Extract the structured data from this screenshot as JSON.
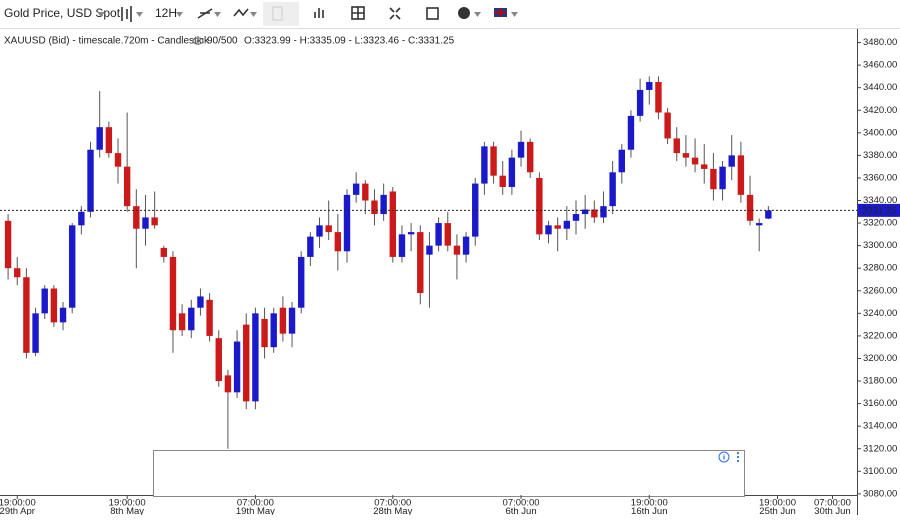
{
  "toolbar": {
    "instrument": "Gold Price, USD Spot",
    "interval": "12H"
  },
  "chart_data": {
    "type": "candlestick",
    "legend_title": "XAUUSD (Bid) - timescale.720m - Candlestick",
    "count": "90/500",
    "ohlc_summary": "O:3323.99 - H:3335.09 - L:3323.46 - C:3331.25",
    "categories": [
      null,
      {
        "time": "19:00:00",
        "date": "29th Apr"
      },
      null,
      null,
      null,
      null,
      null,
      null,
      null,
      null,
      null,
      null,
      null,
      {
        "time": "19:00:00",
        "date": "8th May"
      },
      null,
      null,
      null,
      null,
      null,
      null,
      null,
      null,
      null,
      null,
      null,
      null,
      null,
      {
        "time": "07:00:00",
        "date": "19th May"
      },
      null,
      null,
      null,
      null,
      null,
      null,
      null,
      null,
      null,
      null,
      null,
      null,
      null,
      null,
      {
        "time": "07:00:00",
        "date": "28th May"
      },
      null,
      null,
      null,
      null,
      null,
      null,
      null,
      null,
      null,
      null,
      null,
      null,
      null,
      {
        "time": "07:00:00",
        "date": "6th Jun"
      },
      null,
      null,
      null,
      null,
      null,
      null,
      null,
      null,
      null,
      null,
      null,
      null,
      null,
      {
        "time": "19:00:00",
        "date": "16th Jun"
      },
      null,
      null,
      null,
      null,
      null,
      null,
      null,
      null,
      null,
      null,
      null,
      null,
      null,
      {
        "time": "19:00:00",
        "date": "25th Jun"
      },
      null,
      null,
      null,
      null,
      null,
      {
        "time": "07:00:00",
        "date": "30th Jun"
      }
    ],
    "open": [
      3322,
      3280,
      3272,
      3205,
      3240,
      3262,
      3232,
      3245,
      3318,
      3330,
      3385,
      3405,
      3382,
      3370,
      3335,
      3315,
      3325,
      3298,
      3290,
      3240,
      3225,
      3245,
      3252,
      3218,
      3185,
      3170,
      3230,
      3162,
      3235,
      3210,
      3245,
      3222,
      3245,
      3290,
      3308,
      3318,
      3312,
      3295,
      3345,
      3355,
      3340,
      3328,
      3348,
      3290,
      3310,
      3312,
      3292,
      3300,
      3320,
      3300,
      3292,
      3308,
      3355,
      3388,
      3362,
      3352,
      3378,
      3392,
      3360,
      3310,
      3318,
      3315,
      3322,
      3328,
      3332,
      3325,
      3335,
      3365,
      3385,
      3415,
      3438,
      3445,
      3418,
      3395,
      3382,
      3378,
      3372,
      3368,
      3350,
      3370,
      3380,
      3345,
      3318,
      3323.99,
      null,
      null,
      null,
      null,
      null,
      null,
      null
    ],
    "high": [
      3328,
      3290,
      3280,
      3245,
      3265,
      3265,
      3250,
      3320,
      3335,
      3392,
      3437,
      3410,
      3395,
      3418,
      3350,
      3345,
      3348,
      3300,
      3295,
      3248,
      3252,
      3262,
      3258,
      3225,
      3190,
      3225,
      3240,
      3245,
      3245,
      3245,
      3255,
      3250,
      3295,
      3312,
      3325,
      3340,
      3328,
      3350,
      3365,
      3358,
      3350,
      3355,
      3352,
      3318,
      3320,
      3318,
      3312,
      3325,
      3330,
      3310,
      3312,
      3360,
      3392,
      3392,
      3375,
      3385,
      3402,
      3395,
      3365,
      3322,
      3325,
      3335,
      3340,
      3345,
      3340,
      3348,
      3375,
      3390,
      3420,
      3448,
      3450,
      3450,
      3422,
      3405,
      3398,
      3395,
      3390,
      3382,
      3375,
      3398,
      3392,
      3362,
      3324,
      3335.09,
      null,
      null,
      null,
      null,
      null,
      null,
      null
    ],
    "low": [
      3270,
      3265,
      3200,
      3202,
      3235,
      3228,
      3225,
      3240,
      3310,
      3325,
      3378,
      3378,
      3355,
      3330,
      3280,
      3300,
      3315,
      3285,
      3205,
      3220,
      3218,
      3238,
      3215,
      3175,
      3120,
      3165,
      3155,
      3155,
      3200,
      3205,
      3215,
      3210,
      3240,
      3282,
      3298,
      3305,
      3278,
      3285,
      3338,
      3328,
      3318,
      3322,
      3285,
      3285,
      3295,
      3248,
      3245,
      3295,
      3295,
      3270,
      3285,
      3300,
      3345,
      3355,
      3345,
      3345,
      3370,
      3360,
      3305,
      3302,
      3295,
      3305,
      3310,
      3315,
      3320,
      3320,
      3328,
      3355,
      3378,
      3410,
      3425,
      3412,
      3390,
      3375,
      3370,
      3365,
      3355,
      3340,
      3340,
      3358,
      3338,
      3318,
      3295,
      3323.46,
      null,
      null,
      null,
      null,
      null,
      null,
      null
    ],
    "close": [
      3280,
      3272,
      3205,
      3240,
      3262,
      3232,
      3245,
      3318,
      3330,
      3385,
      3405,
      3382,
      3370,
      3335,
      3315,
      3325,
      3318,
      3290,
      3225,
      3225,
      3245,
      3255,
      3220,
      3180,
      3170,
      3215,
      3162,
      3240,
      3210,
      3240,
      3222,
      3245,
      3290,
      3308,
      3318,
      3312,
      3295,
      3345,
      3355,
      3340,
      3328,
      3345,
      3290,
      3310,
      3312,
      3258,
      3300,
      3320,
      3300,
      3292,
      3308,
      3355,
      3388,
      3362,
      3352,
      3378,
      3392,
      3365,
      3310,
      3318,
      3315,
      3322,
      3328,
      3332,
      3325,
      3335,
      3365,
      3385,
      3415,
      3438,
      3445,
      3418,
      3395,
      3382,
      3378,
      3372,
      3368,
      3350,
      3370,
      3380,
      3345,
      3322,
      3320,
      3331.25,
      null,
      null,
      null,
      null,
      null,
      null,
      null
    ],
    "up_color": "#1a1acc",
    "down_color": "#cc1a1a",
    "ylim": [
      3079,
      3492
    ],
    "yticks": [
      {
        "value": 3080,
        "label": "3080.00"
      },
      {
        "value": 3100,
        "label": "3100.00"
      },
      {
        "value": 3120,
        "label": "3120.00"
      },
      {
        "value": 3140,
        "label": "3140.00"
      },
      {
        "value": 3160,
        "label": "3160.00"
      },
      {
        "value": 3180,
        "label": "3180.00"
      },
      {
        "value": 3200,
        "label": "3200.00"
      },
      {
        "value": 3220,
        "label": "3220.00"
      },
      {
        "value": 3240,
        "label": "3240.00"
      },
      {
        "value": 3260,
        "label": "3260.00"
      },
      {
        "value": 3280,
        "label": "3280.00"
      },
      {
        "value": 3300,
        "label": "3300.00"
      },
      {
        "value": 3320,
        "label": "3320.00"
      },
      {
        "value": 3340,
        "label": "3340.00"
      },
      {
        "value": 3360,
        "label": "3360.00"
      },
      {
        "value": 3380,
        "label": "3380.00"
      },
      {
        "value": 3400,
        "label": "3400.00"
      },
      {
        "value": 3420,
        "label": "3420.00"
      },
      {
        "value": 3440,
        "label": "3440.00"
      },
      {
        "value": 3460,
        "label": "3460.00"
      },
      {
        "value": 3480,
        "label": "3480.00"
      }
    ],
    "last_price": 3331.25,
    "last_price_color": "#1a1acc"
  }
}
